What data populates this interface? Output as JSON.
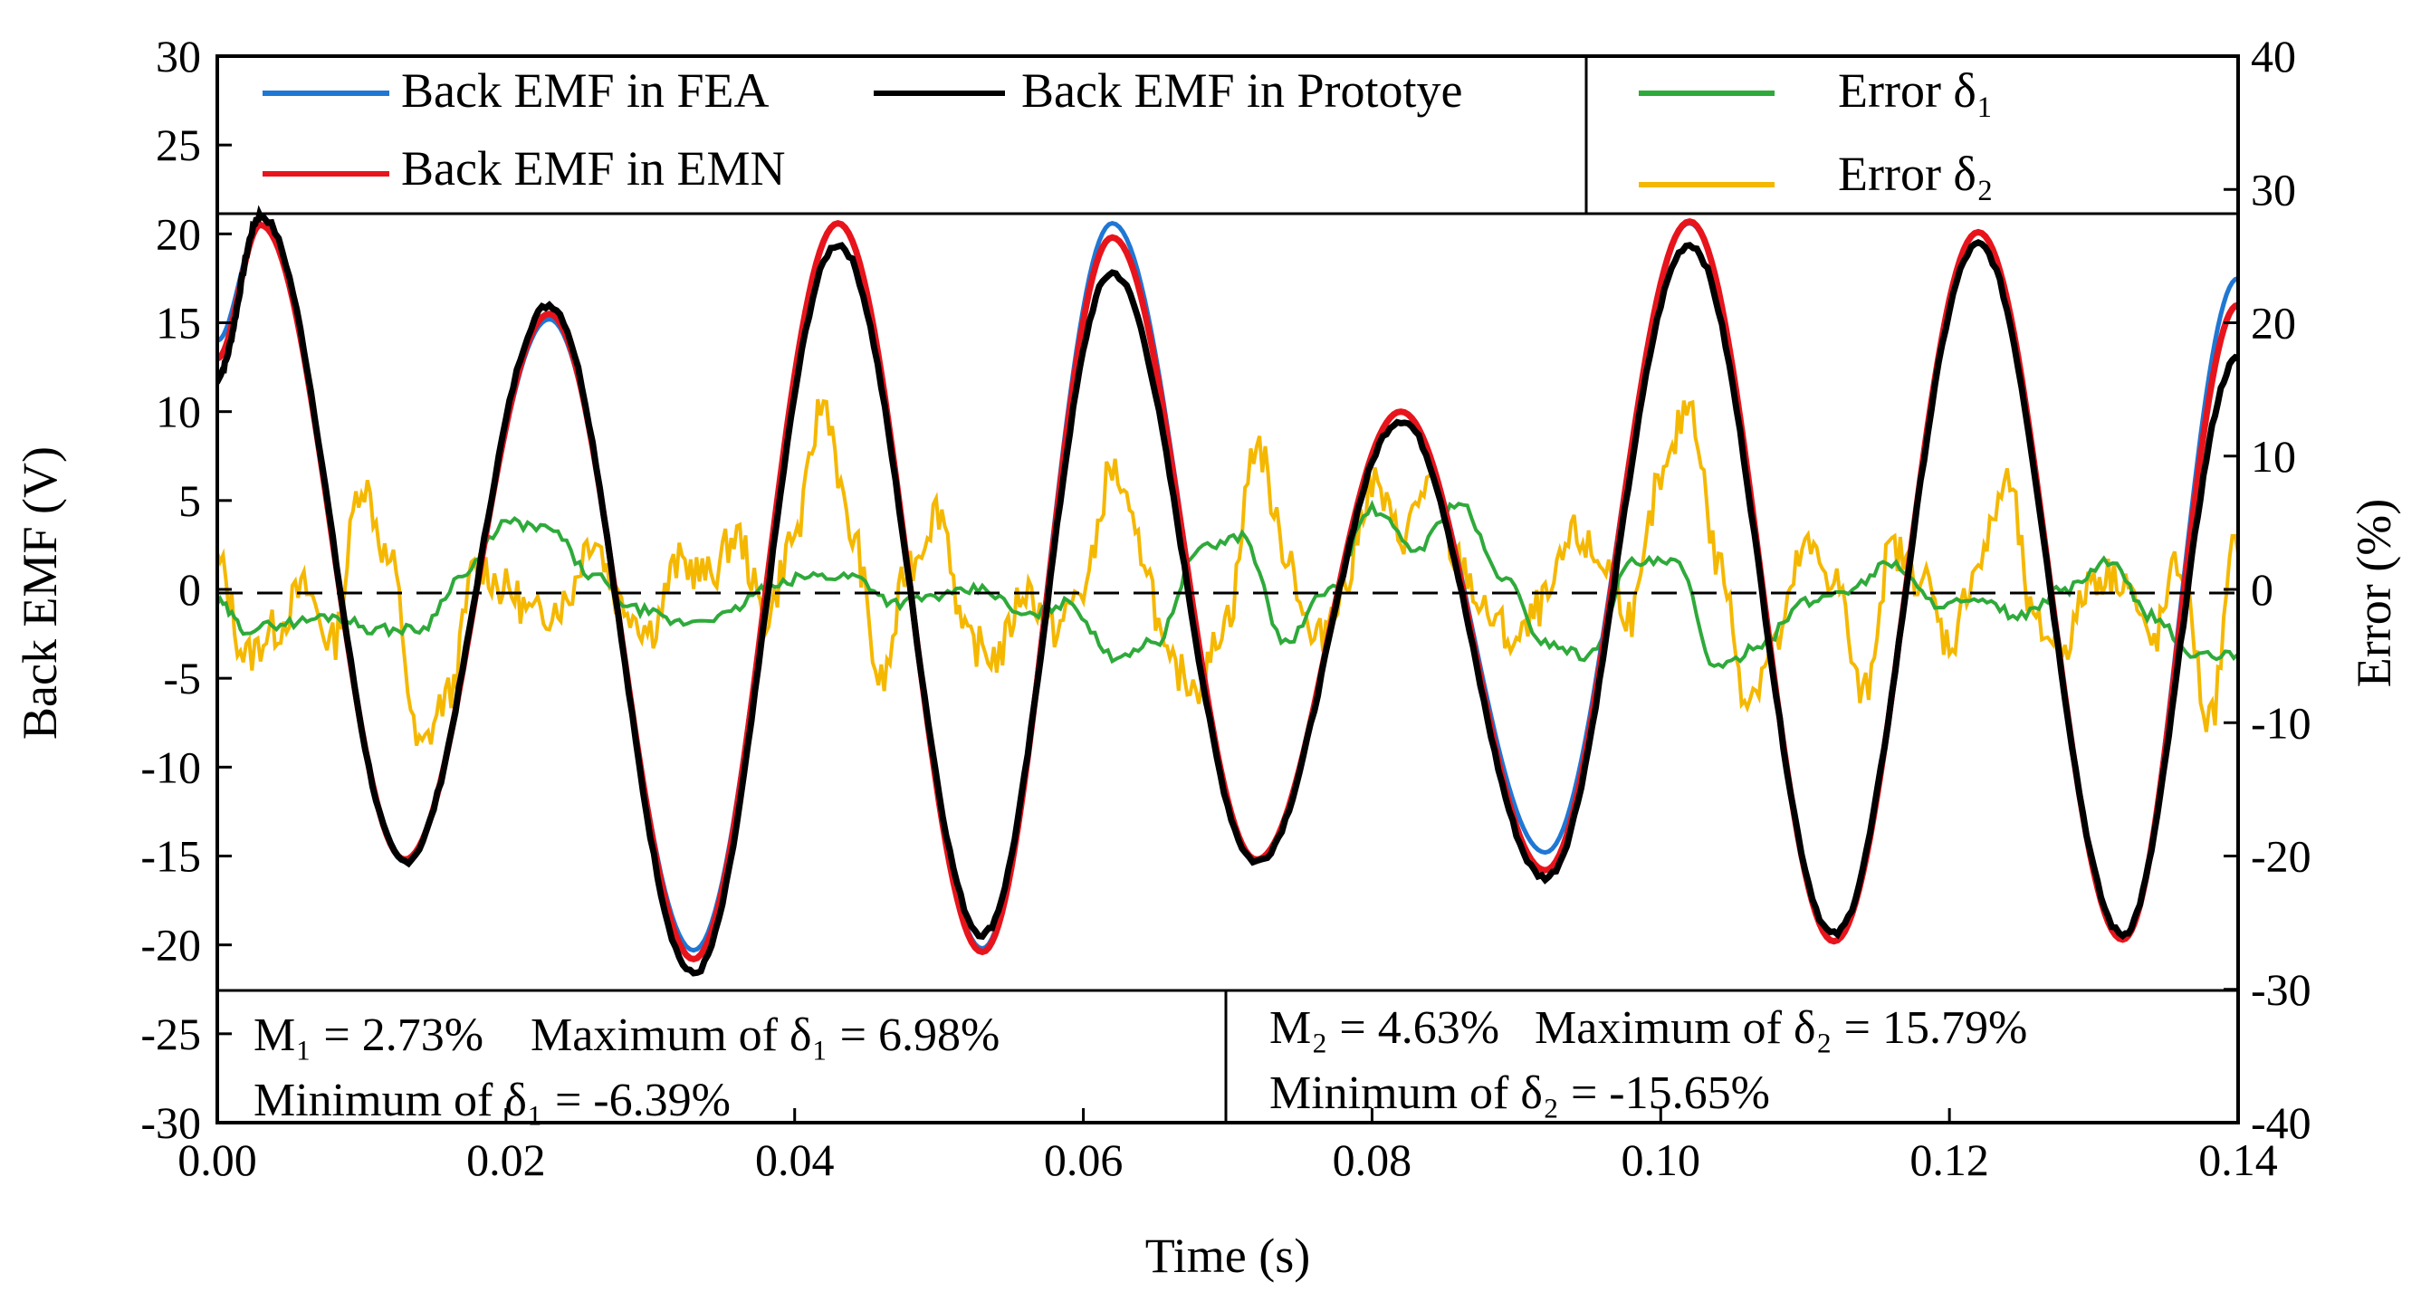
{
  "chart_data": {
    "type": "line",
    "xlabel": "Time (s)",
    "ylabel": "Back EMF (V)",
    "y2label": "Error (%)",
    "xlim": [
      0,
      0.14
    ],
    "ylim": [
      -30,
      30
    ],
    "y2lim": [
      -40,
      40
    ],
    "x_ticks": [
      "0.00",
      "0.02",
      "0.04",
      "0.06",
      "0.08",
      "0.10",
      "0.12",
      "0.14"
    ],
    "y_ticks": [
      "30",
      "25",
      "20",
      "15",
      "10",
      "5",
      "0",
      "-5",
      "-10",
      "-15",
      "-20",
      "-25",
      "-30"
    ],
    "y2_ticks": [
      "40",
      "30",
      "20",
      "10",
      "0",
      "-10",
      "-20",
      "-30",
      "-40"
    ],
    "zero_line": "dashed",
    "legend": [
      {
        "label": "Back EMF in FEA",
        "color": "#1f77d4"
      },
      {
        "label": "Back EMF in Prototye",
        "color": "#000000"
      },
      {
        "label": "Error δ₁",
        "color": "#2eaa3a"
      },
      {
        "label": "Back EMF in EMN",
        "color": "#e8141c"
      },
      {
        "label": "Error δ₂",
        "color": "#f5b800"
      }
    ],
    "emf_peaks": {
      "t": [
        0.0,
        0.003,
        0.013,
        0.023,
        0.033,
        0.043,
        0.053,
        0.062,
        0.072,
        0.082,
        0.092,
        0.102,
        0.112,
        0.122,
        0.132,
        0.14
      ],
      "fea": [
        14,
        20.5,
        -15.3,
        15.2,
        -20.3,
        20.6,
        -20.2,
        20.6,
        -15.3,
        10,
        -14.8,
        20.6,
        -19.8,
        20.1,
        -19.7,
        17.5
      ],
      "emn": [
        13,
        20.5,
        -15.2,
        15.5,
        -20.8,
        20.6,
        -20.4,
        19.8,
        -15.2,
        10,
        -15.8,
        20.7,
        -19.8,
        20.1,
        -19.7,
        16
      ],
      "prototype": [
        12,
        21,
        -15.3,
        16,
        -21.6,
        19.4,
        -19.4,
        17.8,
        -15.3,
        9.5,
        -16.2,
        19.4,
        -19.4,
        19.4,
        -19.4,
        13
      ]
    },
    "error1": {
      "t": [
        0,
        0.002,
        0.005,
        0.008,
        0.011,
        0.014,
        0.017,
        0.02,
        0.023,
        0.026,
        0.029,
        0.032,
        0.035,
        0.038,
        0.041,
        0.044,
        0.047,
        0.05,
        0.053,
        0.056,
        0.059,
        0.062,
        0.065,
        0.068,
        0.071,
        0.074,
        0.077,
        0.08,
        0.083,
        0.086,
        0.089,
        0.092,
        0.095,
        0.098,
        0.101,
        0.104,
        0.107,
        0.11,
        0.113,
        0.116,
        0.119,
        0.122,
        0.125,
        0.128,
        0.131,
        0.134,
        0.137,
        0.14
      ],
      "values": [
        -1,
        -3,
        -2.5,
        -2,
        -3,
        -3,
        1,
        5,
        4.5,
        1,
        -1.5,
        -2.5,
        -2,
        0,
        1,
        1,
        -1,
        -0.5,
        0,
        -2,
        -1,
        -5,
        -4,
        3,
        4,
        -4,
        0,
        6,
        3,
        6.5,
        1,
        -4,
        -5,
        2,
        2,
        -6,
        -4,
        -1,
        0,
        2,
        -1,
        -1,
        -2,
        0,
        2,
        -2,
        -5,
        -5
      ]
    },
    "error2": {
      "t": [
        0,
        0.002,
        0.004,
        0.006,
        0.008,
        0.01,
        0.012,
        0.014,
        0.016,
        0.018,
        0.02,
        0.022,
        0.024,
        0.026,
        0.028,
        0.03,
        0.032,
        0.034,
        0.036,
        0.038,
        0.04,
        0.042,
        0.044,
        0.046,
        0.048,
        0.05,
        0.052,
        0.054,
        0.056,
        0.058,
        0.06,
        0.062,
        0.064,
        0.066,
        0.068,
        0.07,
        0.072,
        0.074,
        0.076,
        0.078,
        0.08,
        0.082,
        0.084,
        0.086,
        0.088,
        0.09,
        0.092,
        0.094,
        0.096,
        0.098,
        0.1,
        0.102,
        0.104,
        0.106,
        0.108,
        0.11,
        0.112,
        0.114,
        0.116,
        0.118,
        0.12,
        0.122,
        0.124,
        0.126,
        0.128,
        0.13,
        0.132,
        0.134,
        0.136,
        0.138,
        0.14
      ],
      "values": [
        2,
        -5,
        -3,
        0,
        -4,
        8,
        2,
        -12,
        -8,
        2,
        0,
        -2,
        -1,
        4,
        -1,
        -3,
        2,
        1,
        4,
        -2,
        4,
        14,
        4,
        -7,
        2,
        6,
        -4,
        -5,
        0,
        -3,
        0,
        9,
        3,
        -6,
        -7,
        -2,
        11,
        3,
        -4,
        0,
        8,
        4,
        8,
        2,
        -2,
        -4,
        -1,
        4,
        2,
        -2,
        8,
        14,
        2,
        -8,
        -4,
        3,
        1,
        -8,
        3,
        1,
        -4,
        2,
        8,
        -3,
        -4,
        1,
        1,
        -4,
        2,
        -10,
        4
      ]
    }
  },
  "stats": {
    "box1_line1": "M₁ = 2.73%    Maximum of δ₁ = 6.98%",
    "box1_line2": "Minimum of δ₁ = -6.39%",
    "box2_line1": "M₂ = 4.63%   Maximum of δ₂ = 15.79%",
    "box2_line2": "Minimum of δ₂ = -15.65%"
  }
}
